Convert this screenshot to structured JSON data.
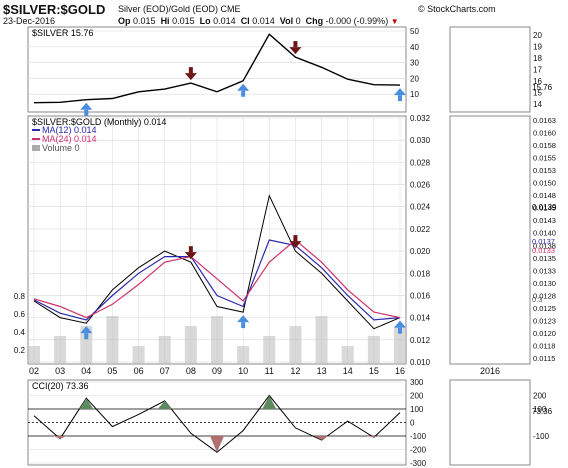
{
  "header": {
    "title": "$SILVER:$GOLD",
    "subtitle": "Silver (EOD)/Gold (EOD) CME",
    "date": "23-Dec-2016",
    "copyright": "© StockCharts.com",
    "op_label": "Op",
    "op_value": "0.015",
    "hi_label": "Hi",
    "hi_value": "0.015",
    "lo_label": "Lo",
    "lo_value": "0.014",
    "cl_label": "Cl",
    "cl_value": "0.014",
    "vol_label": "Vol",
    "vol_value": "0",
    "chg_label": "Chg",
    "chg_value": "-0.000 (-0.99%)",
    "down_arrow": "down-triangle-icon"
  },
  "colors": {
    "price_line": "#000000",
    "ma12": "#2a2ab0",
    "ma24": "#d0306a",
    "volume": "#c0c0c0",
    "cci_fill": "#5f8a5f",
    "cci_neg_fill": "#b07070",
    "arrow_down": "#6b1515",
    "arrow_up": "#4a8ee0",
    "grid": "#d8d8d8",
    "hline": "#000000"
  },
  "top_panel": {
    "legend": "$SILVER 15.76",
    "y_ticks": [
      "50",
      "40",
      "30",
      "20",
      "10"
    ],
    "right_y_ticks": [
      "20",
      "19",
      "18",
      "17",
      "16",
      "15",
      "14"
    ],
    "right_last_label": "15.76"
  },
  "main_panel": {
    "legend_main": "$SILVER:$GOLD (Monthly) 0.014",
    "legend_ma12": "MA(12) 0.014",
    "legend_ma24": "MA(24) 0.014",
    "legend_volume": "Volume 0",
    "y_ticks_right": [
      "0.032",
      "0.030",
      "0.028",
      "0.026",
      "0.024",
      "0.022",
      "0.020",
      "0.018",
      "0.016",
      "0.014",
      "0.012",
      "0.010"
    ],
    "y_ticks_left": [
      "0.8",
      "0.6",
      "0.4",
      "0.2"
    ],
    "x_ticks": [
      "02",
      "03",
      "04",
      "05",
      "06",
      "07",
      "08",
      "09",
      "10",
      "11",
      "12",
      "13",
      "14",
      "15",
      "16"
    ],
    "right_y_ticks": [
      "0.0163",
      "0.0160",
      "0.0158",
      "0.0155",
      "0.0153",
      "0.0150",
      "0.0148",
      "0.0145",
      "0.0143",
      "0.0140",
      "0.0138",
      "0.0135",
      "0.0133",
      "0.0130",
      "0.0128",
      "0.0125",
      "0.0123",
      "0.0120",
      "0.0118",
      "0.0115"
    ],
    "right_x_label": "2016",
    "right_last_label": "0.0139",
    "right_ma_label_1": "0.0137",
    "right_ma_label_2": "0.0133",
    "right_vol_label": "0.3"
  },
  "cci_panel": {
    "legend": "CCI(20) 73.36",
    "y_ticks": [
      "300",
      "200",
      "100",
      "0",
      "-100",
      "-200",
      "-300"
    ],
    "right_y_ticks": [
      "200",
      "100",
      "-100"
    ],
    "right_last_label": "73.36"
  },
  "chart_data": [
    {
      "type": "line",
      "name": "silver_monthly",
      "x": [
        "2002",
        "2003",
        "2004",
        "2005",
        "2006",
        "2007",
        "2008",
        "2009",
        "2010",
        "2011",
        "2012",
        "2013",
        "2014",
        "2015",
        "2016"
      ],
      "series": [
        {
          "name": "$SILVER",
          "values": [
            4.6,
            4.9,
            6.5,
            7.3,
            11.5,
            13.2,
            17.0,
            11.5,
            18.5,
            48.0,
            33.5,
            27.0,
            19.5,
            16.0,
            15.76
          ]
        }
      ],
      "ylim": [
        0,
        50
      ],
      "annotations": [
        {
          "type": "down-arrow",
          "x": "2008"
        },
        {
          "type": "down-arrow",
          "x": "2012"
        },
        {
          "type": "up-arrow",
          "x": "2004"
        },
        {
          "type": "up-arrow",
          "x": "2010"
        },
        {
          "type": "up-arrow",
          "x": "2016"
        }
      ]
    },
    {
      "type": "line",
      "name": "silver_gold_ratio_monthly",
      "x": [
        "2002",
        "2003",
        "2004",
        "2005",
        "2006",
        "2007",
        "2008",
        "2009",
        "2010",
        "2011",
        "2012",
        "2013",
        "2014",
        "2015",
        "2016"
      ],
      "series": [
        {
          "name": "$SILVER:$GOLD",
          "values": [
            0.0155,
            0.014,
            0.0135,
            0.0165,
            0.0185,
            0.02,
            0.019,
            0.015,
            0.0145,
            0.025,
            0.02,
            0.018,
            0.0155,
            0.013,
            0.014
          ]
        },
        {
          "name": "MA(12)",
          "values": [
            0.0156,
            0.0144,
            0.0138,
            0.016,
            0.018,
            0.0195,
            0.0195,
            0.016,
            0.015,
            0.021,
            0.0205,
            0.0185,
            0.016,
            0.0138,
            0.014
          ]
        },
        {
          "name": "MA(24)",
          "values": [
            0.0157,
            0.015,
            0.014,
            0.0152,
            0.017,
            0.019,
            0.0195,
            0.0175,
            0.0155,
            0.019,
            0.021,
            0.019,
            0.0165,
            0.0145,
            0.014
          ]
        }
      ],
      "ylim": [
        0.01,
        0.032
      ],
      "annotations": [
        {
          "type": "down-arrow",
          "x": "2008"
        },
        {
          "type": "down-arrow",
          "x": "2012"
        },
        {
          "type": "up-arrow",
          "x": "2004"
        },
        {
          "type": "up-arrow",
          "x": "2010"
        },
        {
          "type": "up-arrow",
          "x": "2016"
        }
      ]
    },
    {
      "type": "area",
      "name": "cci20",
      "x": [
        "2002",
        "2003",
        "2004",
        "2005",
        "2006",
        "2007",
        "2008",
        "2009",
        "2010",
        "2011",
        "2012",
        "2013",
        "2014",
        "2015",
        "2016"
      ],
      "series": [
        {
          "name": "CCI(20)",
          "values": [
            50,
            -120,
            180,
            -30,
            60,
            160,
            -80,
            -220,
            -60,
            200,
            -40,
            -130,
            10,
            -110,
            73.36
          ]
        }
      ],
      "ylim": [
        -300,
        300
      ]
    }
  ]
}
